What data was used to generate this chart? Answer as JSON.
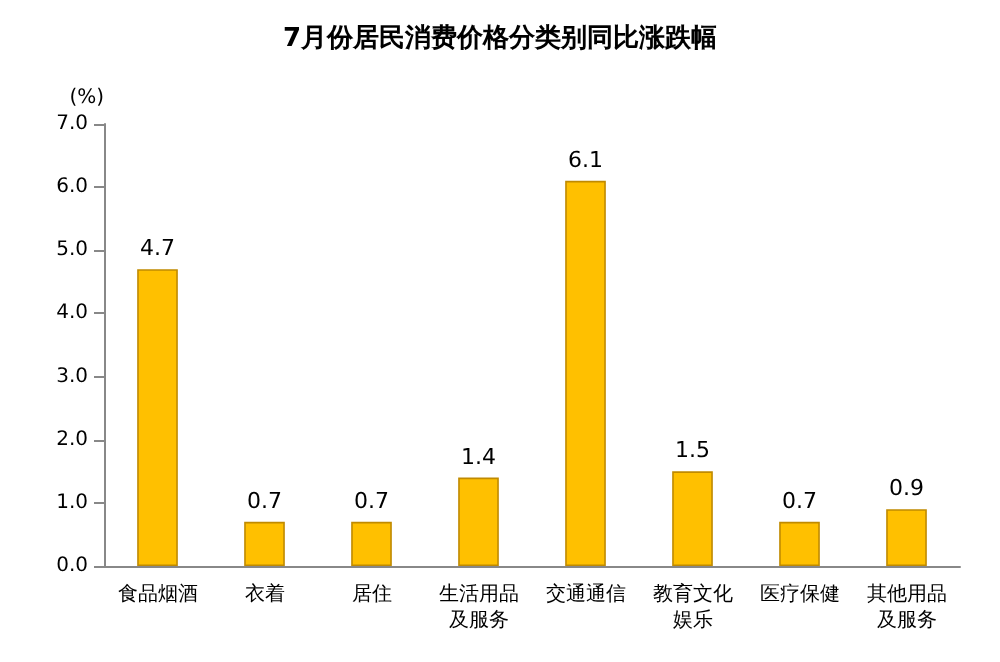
{
  "chart_data": {
    "type": "bar",
    "title": "7月份居民消费价格分类别同比涨跌幅",
    "ylabel": "(%)",
    "categories": [
      "食品烟酒",
      "衣着",
      "居住",
      "生活用品及服务",
      "交通通信",
      "教育文化娱乐",
      "医疗保健",
      "其他用品及服务"
    ],
    "values": [
      4.7,
      0.7,
      0.7,
      1.4,
      6.1,
      1.5,
      0.7,
      0.9
    ],
    "color": "#ffc000",
    "ylim": [
      0,
      7
    ],
    "yticks": [
      {
        "value": 0,
        "label": "0.0"
      },
      {
        "value": 1,
        "label": "1.0"
      },
      {
        "value": 2,
        "label": "2.0"
      },
      {
        "value": 3,
        "label": "3.0"
      },
      {
        "value": 4,
        "label": "4.0"
      },
      {
        "value": 5,
        "label": "5.0"
      },
      {
        "value": 6,
        "label": "6.0"
      },
      {
        "value": 7,
        "label": "7.0"
      }
    ],
    "data_labels": true,
    "grid": false
  }
}
